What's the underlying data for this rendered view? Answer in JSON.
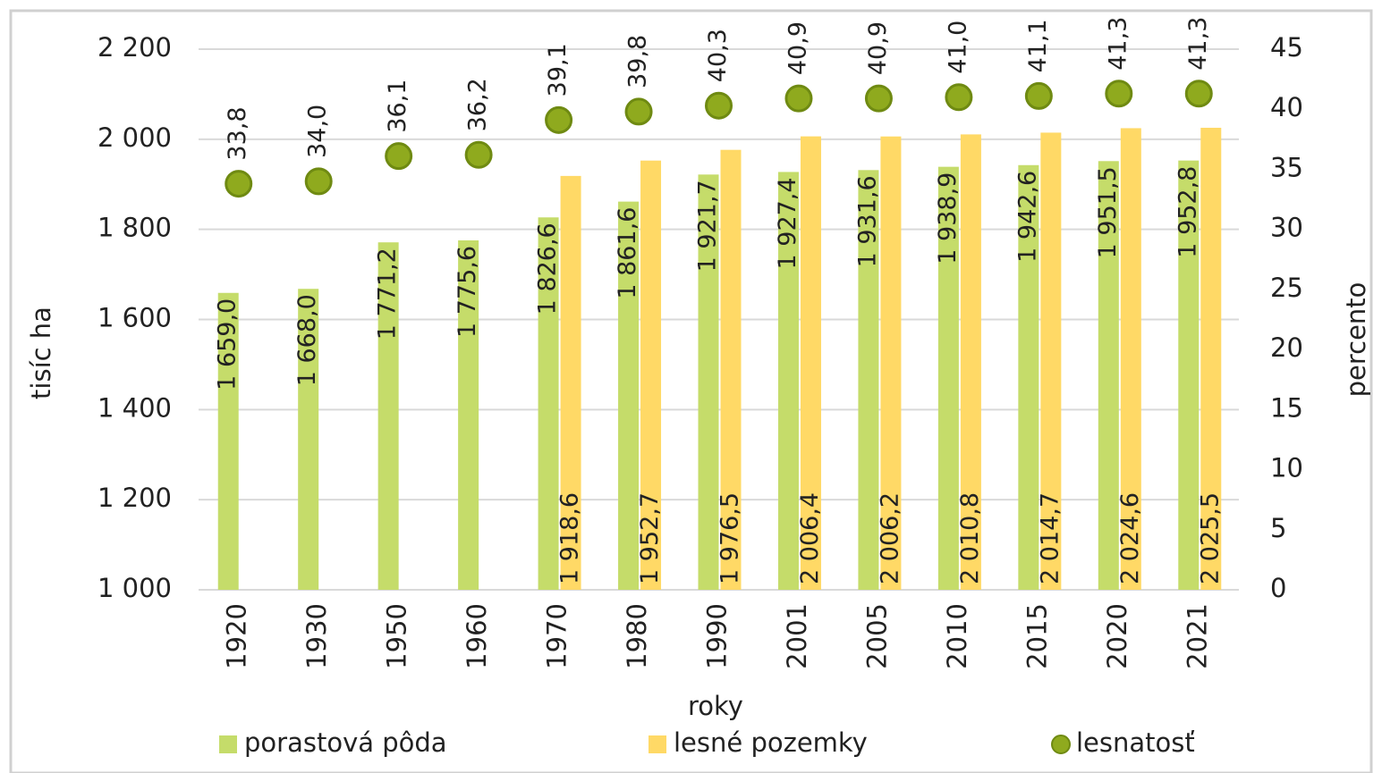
{
  "chart_data": {
    "type": "bar",
    "x_label": "roky",
    "y_label": "tisíc ha",
    "y2_label": "percento",
    "categories": [
      "1920",
      "1930",
      "1950",
      "1960",
      "1970",
      "1980",
      "1990",
      "2001",
      "2005",
      "2010",
      "2015",
      "2020",
      "2021"
    ],
    "series": [
      {
        "name": "porastová pôda",
        "color": "#c5dc6a",
        "values": [
          1659.0,
          1668.0,
          1771.2,
          1775.6,
          1826.6,
          1861.6,
          1921.7,
          1927.4,
          1931.6,
          1938.9,
          1942.6,
          1951.5,
          1952.8
        ],
        "value_labels": [
          "1 659,0",
          "1 668,0",
          "1 771,2",
          "1 775,6",
          "1 826,6",
          "1 861,6",
          "1 921,7",
          "1 927,4",
          "1 931,6",
          "1 938,9",
          "1 942,6",
          "1 951,5",
          "1 952,8"
        ]
      },
      {
        "name": "lesné pozemky",
        "color": "#ffd966",
        "values": [
          null,
          null,
          null,
          null,
          1918.6,
          1952.7,
          1976.5,
          2006.4,
          2006.2,
          2010.8,
          2014.7,
          2024.6,
          2025.5
        ],
        "value_labels": [
          null,
          null,
          null,
          null,
          "1 918,6",
          "1 952,7",
          "1 976,5",
          "2 006,4",
          "2 006,2",
          "2 010,8",
          "2 014,7",
          "2 024,6",
          "2 025,5"
        ]
      },
      {
        "name": "lesnatosť",
        "color": "#8faa1e",
        "type": "scatter",
        "axis": "y2",
        "values": [
          33.8,
          34.0,
          36.1,
          36.2,
          39.1,
          39.8,
          40.3,
          40.9,
          40.9,
          41.0,
          41.1,
          41.3,
          41.3
        ],
        "value_labels": [
          "33,8",
          "34,0",
          "36,1",
          "36,2",
          "39,1",
          "39,8",
          "40,3",
          "40,9",
          "40,9",
          "41,0",
          "41,1",
          "41,3",
          "41,3"
        ]
      }
    ],
    "ylim": [
      1000,
      2200
    ],
    "yticks": [
      {
        "value": 1000,
        "label": "1 000"
      },
      {
        "value": 1200,
        "label": "1 200"
      },
      {
        "value": 1400,
        "label": "1 400"
      },
      {
        "value": 1600,
        "label": "1 600"
      },
      {
        "value": 1800,
        "label": "1 800"
      },
      {
        "value": 2000,
        "label": "2 000"
      },
      {
        "value": 2200,
        "label": "2 200"
      }
    ],
    "y2lim": [
      0,
      45
    ],
    "y2ticks": [
      0,
      5,
      10,
      15,
      20,
      25,
      30,
      35,
      40,
      45
    ],
    "grid": true,
    "legend": "bottom"
  }
}
